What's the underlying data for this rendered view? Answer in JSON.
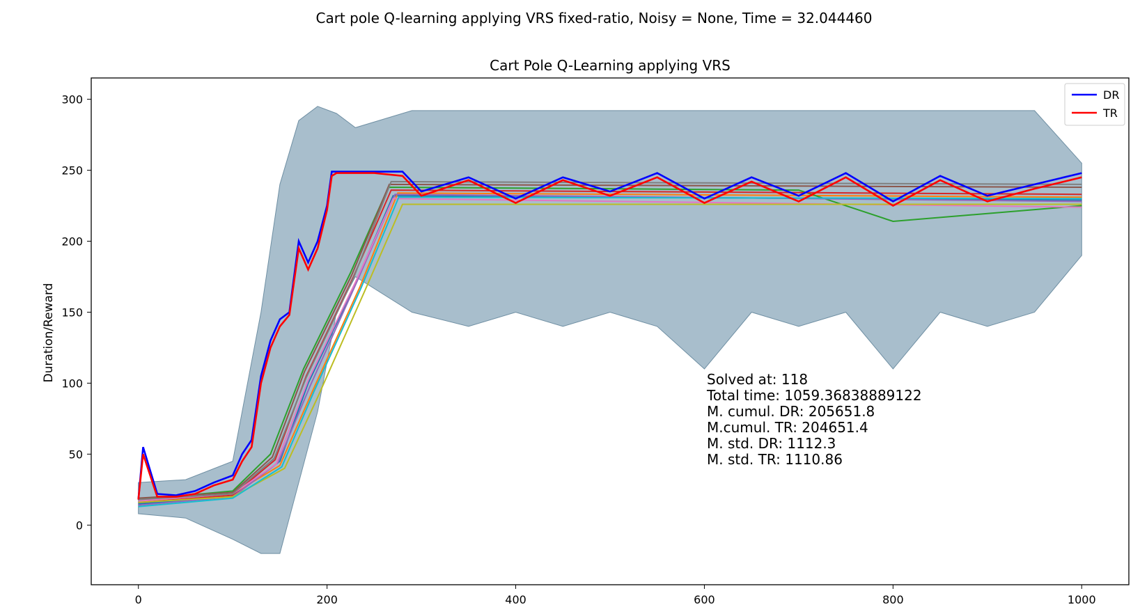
{
  "figure": {
    "suptitle": "Cart pole Q-learning applying VRS fixed-ratio, Noisy = None, Time = 32.044460"
  },
  "chart_data": {
    "type": "line",
    "title": "Cart Pole Q-Learning applying VRS",
    "xlabel": "",
    "ylabel": "Duration/Reward",
    "xlim": [
      -50,
      1050
    ],
    "ylim": [
      -42,
      315
    ],
    "xticks": [
      0,
      200,
      400,
      600,
      800,
      1000
    ],
    "yticks": [
      0,
      50,
      100,
      150,
      200,
      250,
      300
    ],
    "grid": false,
    "legend": {
      "position": "top-right",
      "entries": [
        {
          "name": "DR",
          "color": "#0000ff"
        },
        {
          "name": "TR",
          "color": "#ff0000"
        }
      ]
    },
    "annotation": [
      "Solved at: 118",
      "Total time: 1059.36838889122",
      "M. cumul. DR: 205651.8",
      "M.cumul. TR: 204651.4",
      "M. std. DR: 1112.3",
      "M. std. TR: 1110.86"
    ],
    "series": [
      {
        "name": "DR",
        "color": "#0000ff",
        "x": [
          0,
          5,
          20,
          40,
          60,
          80,
          100,
          110,
          120,
          130,
          140,
          150,
          160,
          170,
          180,
          190,
          200,
          205,
          210,
          230,
          250,
          280,
          300,
          350,
          400,
          450,
          500,
          550,
          600,
          650,
          700,
          750,
          800,
          850,
          900,
          950,
          1000
        ],
        "y": [
          18,
          55,
          22,
          21,
          24,
          30,
          35,
          50,
          60,
          105,
          130,
          145,
          150,
          200,
          185,
          200,
          225,
          249,
          249,
          249,
          249,
          249,
          235,
          245,
          230,
          245,
          235,
          248,
          230,
          245,
          232,
          248,
          228,
          246,
          232,
          240,
          248
        ]
      },
      {
        "name": "TR",
        "color": "#ff0000",
        "x": [
          0,
          5,
          20,
          40,
          60,
          80,
          100,
          110,
          120,
          130,
          140,
          150,
          160,
          170,
          180,
          190,
          200,
          205,
          210,
          230,
          250,
          280,
          300,
          350,
          400,
          450,
          500,
          550,
          600,
          650,
          700,
          750,
          800,
          850,
          900,
          950,
          1000
        ],
        "y": [
          18,
          50,
          20,
          20,
          22,
          28,
          32,
          45,
          55,
          100,
          125,
          140,
          148,
          195,
          180,
          195,
          222,
          246,
          248,
          248,
          248,
          246,
          232,
          243,
          227,
          243,
          232,
          245,
          227,
          242,
          228,
          245,
          225,
          243,
          228,
          237,
          245
        ]
      }
    ],
    "band": {
      "color": "#7a9bb0",
      "x": [
        0,
        50,
        100,
        130,
        150,
        170,
        190,
        210,
        230,
        290,
        350,
        400,
        450,
        500,
        550,
        600,
        650,
        700,
        750,
        800,
        850,
        900,
        950,
        1000
      ],
      "upper": [
        30,
        32,
        45,
        150,
        240,
        285,
        295,
        290,
        280,
        292,
        292,
        292,
        292,
        292,
        292,
        292,
        292,
        292,
        292,
        292,
        292,
        292,
        292,
        255
      ],
      "lower": [
        8,
        5,
        -10,
        -20,
        -20,
        30,
        80,
        150,
        175,
        150,
        140,
        150,
        140,
        150,
        140,
        110,
        150,
        140,
        150,
        110,
        150,
        140,
        150,
        190
      ]
    },
    "runs": [
      {
        "color": "#1f77b4",
        "x": [
          0,
          100,
          150,
          180,
          230,
          270,
          1000
        ],
        "y": [
          15,
          20,
          45,
          100,
          170,
          232,
          229
        ]
      },
      {
        "color": "#ff7f0e",
        "x": [
          0,
          100,
          150,
          185,
          235,
          275,
          1000
        ],
        "y": [
          17,
          22,
          42,
          95,
          168,
          234,
          231
        ]
      },
      {
        "color": "#2ca02c",
        "x": [
          0,
          100,
          140,
          175,
          225,
          265,
          700,
          800,
          1000
        ],
        "y": [
          18,
          24,
          50,
          110,
          178,
          238,
          236,
          214,
          225
        ]
      },
      {
        "color": "#d62728",
        "x": [
          0,
          100,
          145,
          178,
          228,
          268,
          1000
        ],
        "y": [
          16,
          21,
          46,
          105,
          175,
          236,
          233
        ]
      },
      {
        "color": "#9467bd",
        "x": [
          0,
          100,
          148,
          182,
          232,
          272,
          1000
        ],
        "y": [
          14,
          20,
          44,
          98,
          172,
          233,
          228
        ]
      },
      {
        "color": "#8c564b",
        "x": [
          0,
          100,
          142,
          176,
          226,
          266,
          1000
        ],
        "y": [
          19,
          23,
          48,
          108,
          176,
          240,
          238
        ]
      },
      {
        "color": "#e377c2",
        "x": [
          0,
          100,
          146,
          180,
          230,
          270,
          1000
        ],
        "y": [
          17,
          22,
          43,
          102,
          171,
          230,
          224
        ]
      },
      {
        "color": "#7f7f7f",
        "x": [
          0,
          100,
          144,
          178,
          228,
          268,
          1000
        ],
        "y": [
          18,
          22,
          47,
          104,
          174,
          242,
          240
        ]
      },
      {
        "color": "#bcbd22",
        "x": [
          0,
          100,
          155,
          190,
          240,
          280,
          1000
        ],
        "y": [
          16,
          20,
          40,
          90,
          165,
          226,
          226
        ]
      },
      {
        "color": "#17becf",
        "x": [
          0,
          100,
          152,
          186,
          236,
          276,
          1000
        ],
        "y": [
          13,
          19,
          41,
          94,
          167,
          231,
          230
        ]
      }
    ]
  }
}
